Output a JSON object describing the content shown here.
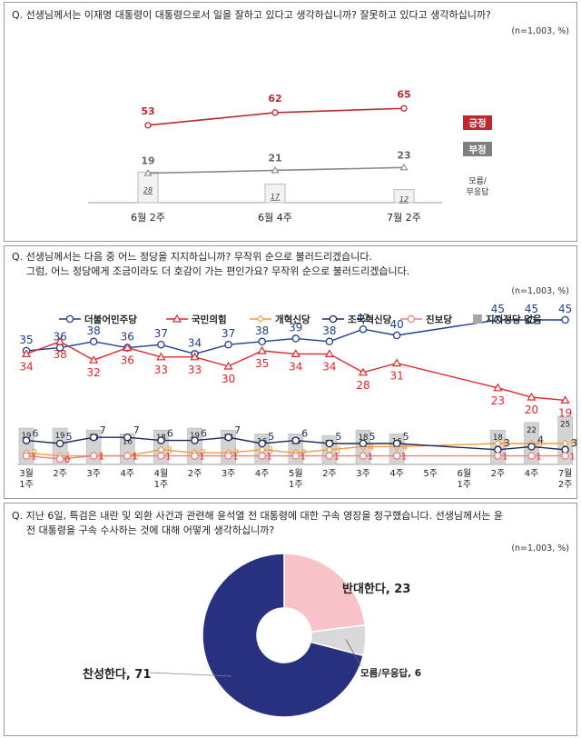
{
  "colors": {
    "positive": "#c0282f",
    "negative": "#8a8a8a",
    "democratic": "#1f3f8f",
    "ppp": "#e0272c",
    "reform": "#f39a3c",
    "rebuilding": "#1c2c5b",
    "progressive": "#f08080",
    "none_bar": "#d3d3d3",
    "pie_yes": "#283080",
    "pie_no": "#f7c3c8",
    "pie_dk": "#d9d9d9"
  },
  "q1": {
    "question": "Q. 선생님께서는 이재명 대통령이 대통령으로서 일을 잘하고 있다고 생각하십니까? 잘못하고 있다고 생각하십니까?",
    "unit": "(n=1,003, %)",
    "legend_positive": "긍정",
    "legend_negative": "부정",
    "legend_dk": "모름/\n무응답"
  },
  "q2": {
    "question_line1": "Q. 선생님께서는 다음 중 어느 정당을 지지하십니까? 무작위 순으로 불러드리겠습니다.",
    "question_line2": "그럼, 어느 정당에게 조금이라도 더 호감이 가는 편인가요? 무작위 순으로 불러드리겠습니다.",
    "unit": "(n=1,003, %)"
  },
  "q3": {
    "question_line1": "Q. 지난 6일, 특검은 내란 및 외환 사건과 관련해 윤석열 전 대통령에 대한 구속 영장을 청구했습니다. 선생님께서는 윤",
    "question_line2": "전 대통령을 구속 수사하는 것에 대해 어떻게 생각하십니까?",
    "unit": "(n=1,003, %)"
  },
  "chart_data": [
    {
      "type": "line",
      "categories": [
        "6월 2주",
        "6월 4주",
        "7월 2주"
      ],
      "series": [
        {
          "name": "긍정",
          "values": [
            53,
            62,
            65
          ]
        },
        {
          "name": "부정",
          "values": [
            19,
            21,
            23
          ]
        }
      ],
      "bars": {
        "name": "모름/무응답",
        "values": [
          28,
          17,
          12
        ]
      },
      "legend_position": "right"
    },
    {
      "type": "line",
      "categories": [
        "3월\n1주",
        "2주",
        "3주",
        "4주",
        "4월\n1주",
        "2주",
        "3주",
        "4주",
        "5월\n1주",
        "2주",
        "3주",
        "4주",
        "5주",
        "6월\n1주",
        "2주",
        "4주",
        "7월\n2주"
      ],
      "series": [
        {
          "name": "더불어민주당",
          "values": [
            35,
            36,
            38,
            36,
            37,
            34,
            37,
            38,
            39,
            38,
            42,
            40,
            null,
            null,
            45,
            45,
            45
          ]
        },
        {
          "name": "국민의힘",
          "values": [
            34,
            38,
            32,
            36,
            33,
            33,
            30,
            35,
            34,
            34,
            28,
            31,
            null,
            null,
            23,
            20,
            19
          ]
        },
        {
          "name": "개혁신당",
          "values": [
            2,
            1,
            1,
            1,
            3,
            2,
            2,
            3,
            2,
            3,
            4,
            4,
            null,
            null,
            5,
            5,
            5
          ]
        },
        {
          "name": "조국혁신당",
          "values": [
            6,
            5,
            7,
            7,
            6,
            6,
            7,
            5,
            6,
            5,
            5,
            5,
            null,
            null,
            3,
            4,
            3
          ]
        },
        {
          "name": "진보당",
          "values": [
            1,
            0,
            1,
            1,
            1,
            1,
            1,
            1,
            1,
            1,
            1,
            1,
            null,
            null,
            1,
            1,
            1
          ]
        }
      ],
      "bars": {
        "name": "지지정당 없음",
        "values": [
          19,
          19,
          18,
          16,
          18,
          19,
          18,
          16,
          16,
          15,
          18,
          16,
          null,
          null,
          18,
          22,
          25
        ]
      },
      "legend_position": "top"
    },
    {
      "type": "pie",
      "labels": [
        "반대한다",
        "모름/무응답",
        "찬성한다"
      ],
      "values": [
        23,
        6,
        71
      ],
      "label_texts": [
        "반대한다, 23",
        "모름/무응답, 6",
        "찬성한다, 71"
      ],
      "donut": true
    }
  ]
}
